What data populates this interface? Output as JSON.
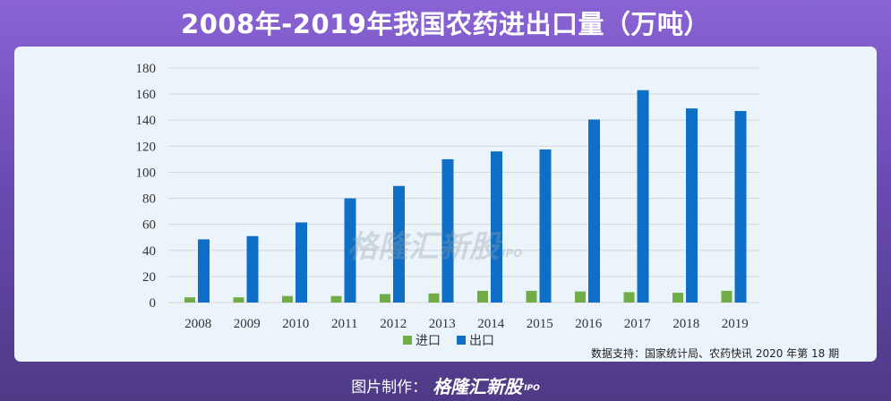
{
  "title": "2008年-2019年我国农药进出口量（万吨）",
  "source": "数据支持：国家统计局、农药快讯 2020 年第 18 期",
  "footer": {
    "label": "图片制作：",
    "brand": "格隆汇新股",
    "ipo": "IPO"
  },
  "watermark": {
    "brand": "格隆汇新股",
    "ipo": "IPO"
  },
  "colors": {
    "import": "#70ad47",
    "export": "#0f6fc6",
    "grid": "#d6d6d6"
  },
  "chart_data": {
    "type": "bar",
    "title": "2008年-2019年我国农药进出口量（万吨）",
    "xlabel": "",
    "ylabel": "",
    "ylim": [
      0,
      180
    ],
    "yticks": [
      "0",
      "20",
      "40",
      "60",
      "80",
      "100",
      "120",
      "140",
      "160",
      "180"
    ],
    "categories": [
      "2008",
      "2009",
      "2010",
      "2011",
      "2012",
      "2013",
      "2014",
      "2015",
      "2016",
      "2017",
      "2018",
      "2019"
    ],
    "series": [
      {
        "name": "进口",
        "values": [
          4,
          4,
          5,
          5,
          6.5,
          7,
          9,
          9,
          8.5,
          8,
          7.5,
          9
        ]
      },
      {
        "name": "出口",
        "values": [
          48.5,
          51,
          61.5,
          80,
          89.5,
          110,
          116,
          117.5,
          140.5,
          163,
          149,
          147
        ]
      }
    ],
    "legend": "bottom-center"
  }
}
